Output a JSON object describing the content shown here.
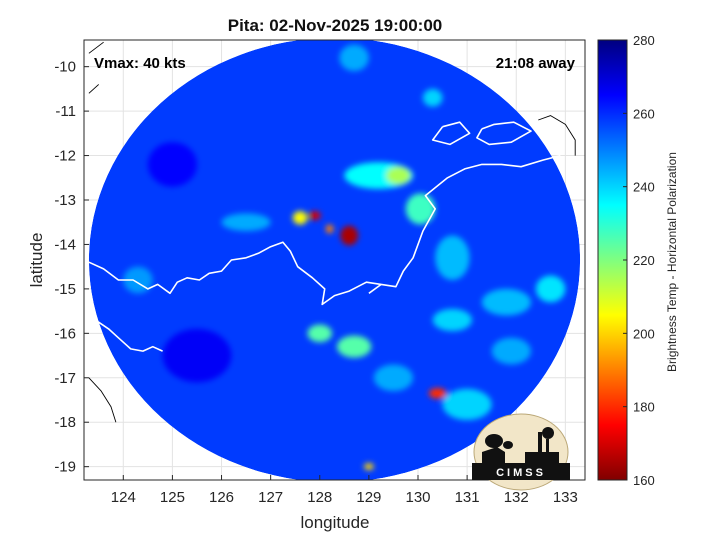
{
  "chart_data": {
    "type": "heatmap",
    "title": "Pita: 02-Nov-2025 19:00:00",
    "xlabel": "longitude",
    "ylabel": "latitude",
    "xlim": [
      123.2,
      133.4
    ],
    "ylim": [
      -19.3,
      -9.4
    ],
    "x_ticks": [
      124,
      125,
      126,
      127,
      128,
      129,
      130,
      131,
      132,
      133
    ],
    "y_ticks": [
      -10,
      -11,
      -12,
      -13,
      -14,
      -15,
      -16,
      -17,
      -18,
      -19
    ],
    "grid": true,
    "annotations": {
      "vmax": "Vmax: 40 kts",
      "away": "21:08 away"
    },
    "colorbar": {
      "label": "Brightness Temp - Horizontal Polarization",
      "range": [
        160,
        280
      ],
      "ticks": [
        280,
        260,
        240,
        220,
        200,
        180,
        160
      ],
      "colormap": "jet"
    },
    "swath": {
      "center": [
        128.3,
        -14.35
      ],
      "radius_lon": 5.0,
      "radius_lat": 5.0
    },
    "background_tb": 258,
    "features": [
      {
        "lon": 128.6,
        "lat": -13.8,
        "sx": 0.18,
        "sy": 0.22,
        "tb": 165
      },
      {
        "lon": 127.9,
        "lat": -13.35,
        "sx": 0.12,
        "sy": 0.1,
        "tb": 170
      },
      {
        "lon": 128.2,
        "lat": -13.65,
        "sx": 0.08,
        "sy": 0.1,
        "tb": 190
      },
      {
        "lon": 127.6,
        "lat": -13.4,
        "sx": 0.15,
        "sy": 0.15,
        "tb": 205
      },
      {
        "lon": 130.4,
        "lat": -17.35,
        "sx": 0.18,
        "sy": 0.12,
        "tb": 180
      },
      {
        "lon": 128.7,
        "lat": -16.3,
        "sx": 0.35,
        "sy": 0.25,
        "tb": 225
      },
      {
        "lon": 129.2,
        "lat": -12.45,
        "sx": 0.7,
        "sy": 0.3,
        "tb": 235
      },
      {
        "lon": 129.6,
        "lat": -12.45,
        "sx": 0.25,
        "sy": 0.2,
        "tb": 215
      },
      {
        "lon": 130.05,
        "lat": -13.2,
        "sx": 0.3,
        "sy": 0.35,
        "tb": 228
      },
      {
        "lon": 128.0,
        "lat": -16.0,
        "sx": 0.25,
        "sy": 0.2,
        "tb": 225
      },
      {
        "lon": 129.0,
        "lat": -19.0,
        "sx": 0.1,
        "sy": 0.08,
        "tb": 200
      },
      {
        "lon": 130.7,
        "lat": -14.3,
        "sx": 0.35,
        "sy": 0.5,
        "tb": 243
      },
      {
        "lon": 131.8,
        "lat": -15.3,
        "sx": 0.5,
        "sy": 0.3,
        "tb": 243
      },
      {
        "lon": 132.7,
        "lat": -15.0,
        "sx": 0.3,
        "sy": 0.3,
        "tb": 238
      },
      {
        "lon": 131.9,
        "lat": -16.4,
        "sx": 0.4,
        "sy": 0.3,
        "tb": 245
      },
      {
        "lon": 130.7,
        "lat": -15.7,
        "sx": 0.4,
        "sy": 0.25,
        "tb": 240
      },
      {
        "lon": 131.0,
        "lat": -17.6,
        "sx": 0.5,
        "sy": 0.35,
        "tb": 240
      },
      {
        "lon": 129.5,
        "lat": -17.0,
        "sx": 0.4,
        "sy": 0.3,
        "tb": 245
      },
      {
        "lon": 128.7,
        "lat": -9.8,
        "sx": 0.3,
        "sy": 0.3,
        "tb": 245
      },
      {
        "lon": 130.3,
        "lat": -10.7,
        "sx": 0.2,
        "sy": 0.2,
        "tb": 240
      },
      {
        "lon": 126.5,
        "lat": -13.5,
        "sx": 0.5,
        "sy": 0.2,
        "tb": 245
      },
      {
        "lon": 125.0,
        "lat": -12.2,
        "sx": 0.5,
        "sy": 0.5,
        "tb": 265
      },
      {
        "lon": 125.5,
        "lat": -16.5,
        "sx": 0.7,
        "sy": 0.6,
        "tb": 266
      },
      {
        "lon": 124.3,
        "lat": -14.8,
        "sx": 0.3,
        "sy": 0.3,
        "tb": 247
      }
    ],
    "coastlines": [
      [
        [
          123.3,
          -14.4
        ],
        [
          123.6,
          -14.55
        ],
        [
          123.9,
          -14.8
        ],
        [
          124.2,
          -14.8
        ],
        [
          124.5,
          -15.0
        ],
        [
          124.7,
          -14.9
        ],
        [
          124.95,
          -15.1
        ],
        [
          125.1,
          -14.85
        ],
        [
          125.3,
          -14.75
        ],
        [
          125.55,
          -14.8
        ],
        [
          125.75,
          -14.65
        ],
        [
          126.0,
          -14.6
        ],
        [
          126.2,
          -14.35
        ],
        [
          126.5,
          -14.3
        ],
        [
          126.75,
          -14.2
        ],
        [
          127.0,
          -14.05
        ],
        [
          127.25,
          -13.95
        ],
        [
          127.4,
          -14.15
        ],
        [
          127.55,
          -14.5
        ],
        [
          127.85,
          -14.75
        ],
        [
          128.1,
          -15.0
        ],
        [
          128.05,
          -15.35
        ],
        [
          128.3,
          -15.15
        ],
        [
          128.6,
          -15.05
        ],
        [
          128.95,
          -14.85
        ],
        [
          129.25,
          -14.9
        ],
        [
          129.55,
          -14.95
        ],
        [
          129.7,
          -14.6
        ],
        [
          129.9,
          -14.3
        ],
        [
          130.1,
          -13.7
        ],
        [
          130.35,
          -13.2
        ],
        [
          130.15,
          -12.9
        ],
        [
          130.6,
          -12.5
        ],
        [
          130.95,
          -12.3
        ],
        [
          131.3,
          -12.2
        ],
        [
          131.7,
          -12.2
        ],
        [
          132.1,
          -12.25
        ],
        [
          132.55,
          -12.1
        ],
        [
          132.9,
          -12.0
        ]
      ],
      [
        [
          123.3,
          -15.6
        ],
        [
          123.7,
          -15.9
        ],
        [
          123.9,
          -16.1
        ],
        [
          124.15,
          -16.35
        ],
        [
          124.4,
          -16.4
        ],
        [
          124.6,
          -16.3
        ],
        [
          124.8,
          -16.4
        ]
      ],
      [
        [
          129.0,
          -15.1
        ],
        [
          129.25,
          -14.9
        ]
      ],
      [
        [
          131.3,
          -11.4
        ],
        [
          131.55,
          -11.3
        ],
        [
          131.95,
          -11.25
        ],
        [
          132.3,
          -11.45
        ],
        [
          131.9,
          -11.7
        ],
        [
          131.45,
          -11.75
        ],
        [
          131.2,
          -11.6
        ],
        [
          131.3,
          -11.4
        ]
      ],
      [
        [
          130.5,
          -11.35
        ],
        [
          130.85,
          -11.25
        ],
        [
          131.05,
          -11.5
        ],
        [
          130.65,
          -11.75
        ],
        [
          130.3,
          -11.65
        ],
        [
          130.5,
          -11.35
        ]
      ],
      [
        [
          132.45,
          -11.2
        ],
        [
          132.7,
          -11.1
        ],
        [
          133.0,
          -11.3
        ],
        [
          133.2,
          -11.65
        ],
        [
          133.2,
          -12.0
        ]
      ],
      [
        [
          123.3,
          -9.7
        ],
        [
          123.6,
          -9.45
        ]
      ],
      [
        [
          123.3,
          -10.6
        ],
        [
          123.5,
          -10.4
        ]
      ],
      [
        [
          123.3,
          -17.0
        ],
        [
          123.55,
          -17.3
        ],
        [
          123.75,
          -17.65
        ],
        [
          123.85,
          -18.0
        ]
      ]
    ]
  }
}
